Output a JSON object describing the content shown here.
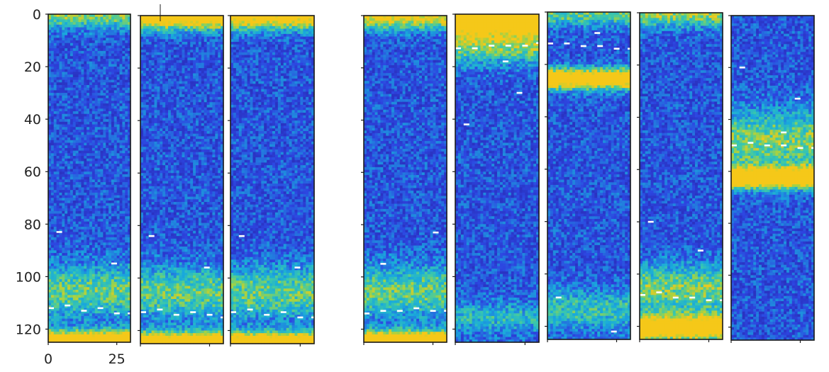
{
  "chart_data": {
    "type": "heatmap",
    "title": "",
    "xlabel": "",
    "ylabel": "",
    "colormap": "jet-like (blue to yellow)",
    "colors": {
      "low": "#2d2bb5",
      "mid": "#1fb4d8",
      "high": "#f2c419",
      "marker": "#ffffff"
    },
    "ylim": [
      125,
      0
    ],
    "yticks": [
      0,
      20,
      40,
      60,
      80,
      100,
      120
    ],
    "xlim": [
      0,
      30
    ],
    "xticks": [
      0,
      25
    ],
    "grid": false,
    "panels": [
      {
        "bands": [
          {
            "center": 0,
            "width": 5,
            "strength": 0.5
          },
          {
            "center": 105,
            "width": 10,
            "strength": 0.45
          },
          {
            "center": 124,
            "width": 4,
            "strength": 1.0
          }
        ],
        "white_marks": [
          {
            "x": 3,
            "y": 83
          },
          {
            "x": 23,
            "y": 95
          },
          {
            "x": 0,
            "y": 112
          },
          {
            "x": 6,
            "y": 111
          },
          {
            "x": 12,
            "y": 113
          },
          {
            "x": 18,
            "y": 112
          },
          {
            "x": 24,
            "y": 114
          },
          {
            "x": 29,
            "y": 114
          }
        ]
      },
      {
        "bands": [
          {
            "center": 0,
            "width": 5,
            "strength": 0.9
          },
          {
            "center": 105,
            "width": 10,
            "strength": 0.45
          },
          {
            "center": 124,
            "width": 4,
            "strength": 1.0
          }
        ],
        "white_marks": [
          {
            "x": 3,
            "y": 84
          },
          {
            "x": 23,
            "y": 96
          },
          {
            "x": 0,
            "y": 113
          },
          {
            "x": 6,
            "y": 112
          },
          {
            "x": 12,
            "y": 114
          },
          {
            "x": 18,
            "y": 113
          },
          {
            "x": 24,
            "y": 114
          },
          {
            "x": 29,
            "y": 115
          }
        ]
      },
      {
        "bands": [
          {
            "center": 0,
            "width": 5,
            "strength": 0.8
          },
          {
            "center": 105,
            "width": 10,
            "strength": 0.45
          },
          {
            "center": 124,
            "width": 4,
            "strength": 1.0
          }
        ],
        "white_marks": [
          {
            "x": 3,
            "y": 84
          },
          {
            "x": 23,
            "y": 96
          },
          {
            "x": 0,
            "y": 113
          },
          {
            "x": 6,
            "y": 112
          },
          {
            "x": 12,
            "y": 114
          },
          {
            "x": 18,
            "y": 113
          },
          {
            "x": 24,
            "y": 115
          },
          {
            "x": 29,
            "y": 115
          }
        ]
      },
      {
        "bands": [
          {
            "center": 0,
            "width": 5,
            "strength": 0.7
          },
          {
            "center": 105,
            "width": 10,
            "strength": 0.45
          },
          {
            "center": 124,
            "width": 4,
            "strength": 1.0
          }
        ],
        "white_marks": [
          {
            "x": 25,
            "y": 83
          },
          {
            "x": 6,
            "y": 95
          },
          {
            "x": 0,
            "y": 114
          },
          {
            "x": 6,
            "y": 113
          },
          {
            "x": 12,
            "y": 113
          },
          {
            "x": 18,
            "y": 112
          },
          {
            "x": 24,
            "y": 113
          },
          {
            "x": 29,
            "y": 113
          }
        ]
      },
      {
        "bands": [
          {
            "center": 1,
            "width": 7,
            "strength": 0.95
          },
          {
            "center": 12,
            "width": 7,
            "strength": 0.45
          },
          {
            "center": 115,
            "width": 6,
            "strength": 0.3
          }
        ],
        "white_marks": [
          {
            "x": 3,
            "y": 42
          },
          {
            "x": 22,
            "y": 30
          },
          {
            "x": 0,
            "y": 13
          },
          {
            "x": 6,
            "y": 13
          },
          {
            "x": 12,
            "y": 12
          },
          {
            "x": 18,
            "y": 12
          },
          {
            "x": 24,
            "y": 12
          },
          {
            "x": 29,
            "y": 11
          },
          {
            "x": 17,
            "y": 18
          }
        ]
      },
      {
        "bands": [
          {
            "center": 0,
            "width": 5,
            "strength": 0.45
          },
          {
            "center": 25,
            "width": 4,
            "strength": 1.0
          },
          {
            "center": 113,
            "width": 8,
            "strength": 0.35
          }
        ],
        "white_marks": [
          {
            "x": 3,
            "y": 109
          },
          {
            "x": 23,
            "y": 122
          },
          {
            "x": 0,
            "y": 12
          },
          {
            "x": 6,
            "y": 12
          },
          {
            "x": 12,
            "y": 13
          },
          {
            "x": 18,
            "y": 13
          },
          {
            "x": 24,
            "y": 14
          },
          {
            "x": 29,
            "y": 14
          },
          {
            "x": 17,
            "y": 8
          }
        ]
      },
      {
        "bands": [
          {
            "center": 0,
            "width": 5,
            "strength": 0.55
          },
          {
            "center": 105,
            "width": 9,
            "strength": 0.5
          },
          {
            "center": 120,
            "width": 5,
            "strength": 1.0
          }
        ],
        "white_marks": [
          {
            "x": 3,
            "y": 80
          },
          {
            "x": 21,
            "y": 91
          },
          {
            "x": 0,
            "y": 108
          },
          {
            "x": 6,
            "y": 107
          },
          {
            "x": 12,
            "y": 109
          },
          {
            "x": 18,
            "y": 109
          },
          {
            "x": 24,
            "y": 110
          },
          {
            "x": 29,
            "y": 110
          }
        ]
      },
      {
        "bands": [
          {
            "center": 62,
            "width": 4,
            "strength": 1.0
          },
          {
            "center": 48,
            "width": 12,
            "strength": 0.5
          }
        ],
        "white_marks": [
          {
            "x": 3,
            "y": 20
          },
          {
            "x": 23,
            "y": 32
          },
          {
            "x": 0,
            "y": 50
          },
          {
            "x": 6,
            "y": 49
          },
          {
            "x": 12,
            "y": 50
          },
          {
            "x": 18,
            "y": 50
          },
          {
            "x": 24,
            "y": 51
          },
          {
            "x": 29,
            "y": 51
          },
          {
            "x": 18,
            "y": 45
          }
        ]
      }
    ]
  }
}
